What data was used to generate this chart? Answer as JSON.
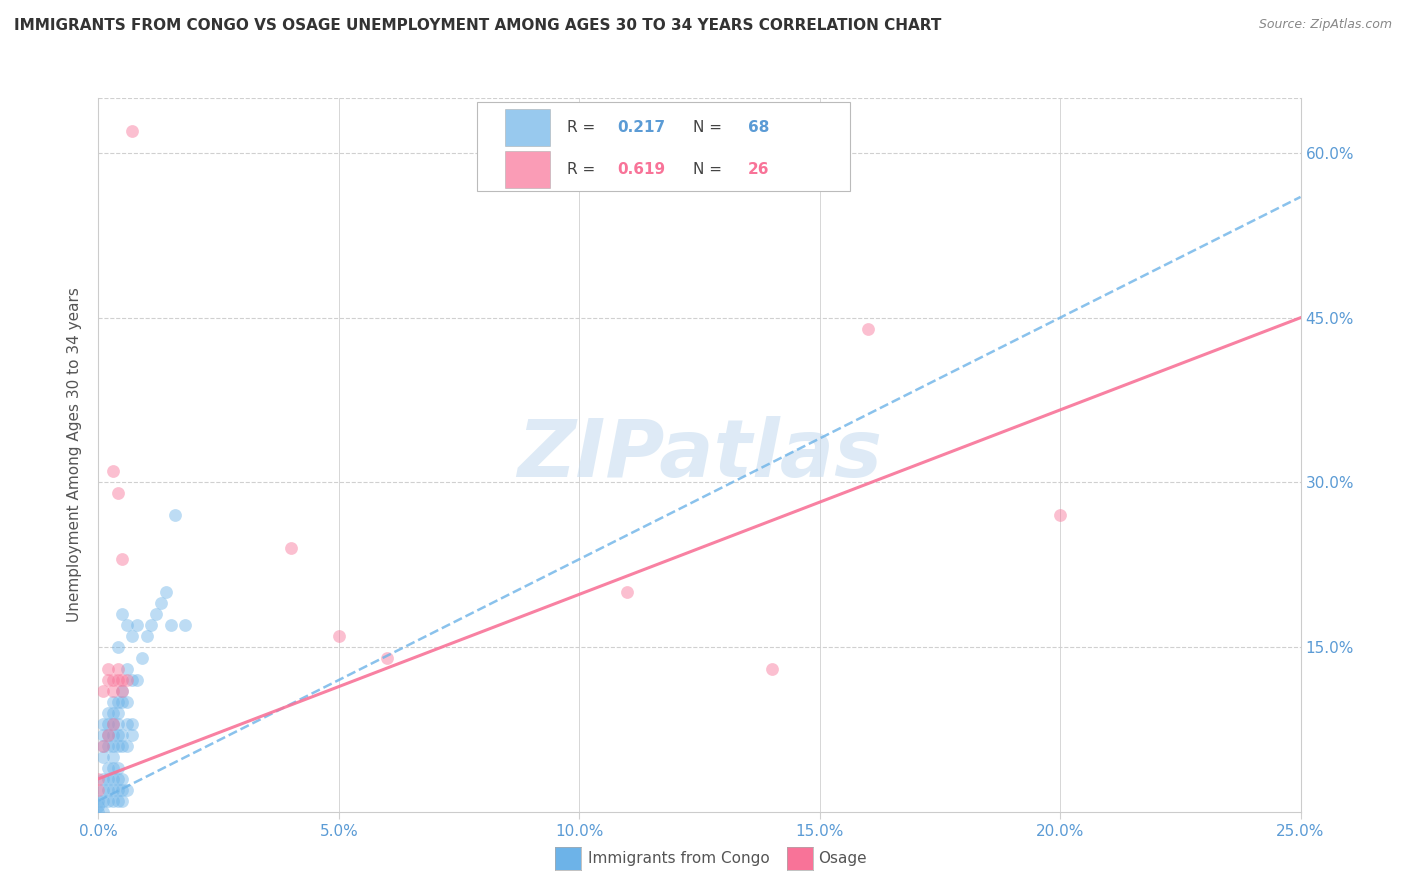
{
  "title": "IMMIGRANTS FROM CONGO VS OSAGE UNEMPLOYMENT AMONG AGES 30 TO 34 YEARS CORRELATION CHART",
  "source": "Source: ZipAtlas.com",
  "ylabel": "Unemployment Among Ages 30 to 34 years",
  "watermark": "ZIPatlas",
  "xlim": [
    0.0,
    0.25
  ],
  "ylim": [
    0.0,
    0.65
  ],
  "xticks": [
    0.0,
    0.05,
    0.1,
    0.15,
    0.2,
    0.25
  ],
  "xticklabels": [
    "0.0%",
    "5.0%",
    "10.0%",
    "15.0%",
    "20.0%",
    "25.0%"
  ],
  "yticks": [
    0.0,
    0.15,
    0.3,
    0.45,
    0.6
  ],
  "yticklabels": [
    "",
    "15.0%",
    "30.0%",
    "45.0%",
    "60.0%"
  ],
  "blue_scatter_x": [
    0.0,
    0.0,
    0.0,
    0.001,
    0.001,
    0.001,
    0.001,
    0.001,
    0.001,
    0.001,
    0.001,
    0.002,
    0.002,
    0.002,
    0.002,
    0.002,
    0.002,
    0.002,
    0.002,
    0.003,
    0.003,
    0.003,
    0.003,
    0.003,
    0.003,
    0.003,
    0.003,
    0.003,
    0.003,
    0.004,
    0.004,
    0.004,
    0.004,
    0.004,
    0.004,
    0.004,
    0.004,
    0.004,
    0.004,
    0.005,
    0.005,
    0.005,
    0.005,
    0.005,
    0.005,
    0.005,
    0.005,
    0.006,
    0.006,
    0.006,
    0.006,
    0.006,
    0.006,
    0.007,
    0.007,
    0.007,
    0.007,
    0.008,
    0.008,
    0.009,
    0.01,
    0.011,
    0.012,
    0.013,
    0.014,
    0.015,
    0.016,
    0.018
  ],
  "blue_scatter_y": [
    0.0,
    0.01,
    0.005,
    0.0,
    0.01,
    0.02,
    0.03,
    0.05,
    0.06,
    0.07,
    0.08,
    0.01,
    0.02,
    0.03,
    0.04,
    0.06,
    0.07,
    0.08,
    0.09,
    0.01,
    0.02,
    0.03,
    0.04,
    0.05,
    0.06,
    0.07,
    0.08,
    0.09,
    0.1,
    0.01,
    0.02,
    0.03,
    0.04,
    0.06,
    0.07,
    0.08,
    0.09,
    0.1,
    0.15,
    0.01,
    0.02,
    0.03,
    0.06,
    0.07,
    0.1,
    0.11,
    0.18,
    0.02,
    0.06,
    0.08,
    0.1,
    0.13,
    0.17,
    0.07,
    0.08,
    0.12,
    0.16,
    0.12,
    0.17,
    0.14,
    0.16,
    0.17,
    0.18,
    0.19,
    0.2,
    0.17,
    0.27,
    0.17
  ],
  "pink_scatter_x": [
    0.0,
    0.001,
    0.001,
    0.002,
    0.002,
    0.002,
    0.003,
    0.003,
    0.003,
    0.003,
    0.004,
    0.004,
    0.004,
    0.005,
    0.005,
    0.005,
    0.006,
    0.04,
    0.05,
    0.06,
    0.11,
    0.14,
    0.16,
    0.2,
    0.0,
    0.007
  ],
  "pink_scatter_y": [
    0.03,
    0.06,
    0.11,
    0.07,
    0.12,
    0.13,
    0.08,
    0.11,
    0.12,
    0.31,
    0.12,
    0.13,
    0.29,
    0.11,
    0.12,
    0.23,
    0.12,
    0.24,
    0.16,
    0.14,
    0.2,
    0.13,
    0.44,
    0.27,
    0.02,
    0.62
  ],
  "blue_line_x": [
    0.0,
    0.25
  ],
  "blue_line_y": [
    0.01,
    0.56
  ],
  "pink_line_x": [
    0.0,
    0.25
  ],
  "pink_line_y": [
    0.03,
    0.45
  ],
  "scatter_alpha": 0.45,
  "scatter_size": 85,
  "blue_color": "#6db3e8",
  "pink_color": "#f87398",
  "grid_color": "#d0d0d0",
  "tick_color": "#5b9bd5",
  "title_color": "#333333",
  "background_color": "#ffffff",
  "watermark_color": "#c8ddf0",
  "legend": {
    "blue_R": "0.217",
    "blue_N": "68",
    "pink_R": "0.619",
    "pink_N": "26",
    "blue_label": "Immigrants from Congo",
    "pink_label": "Osage"
  }
}
